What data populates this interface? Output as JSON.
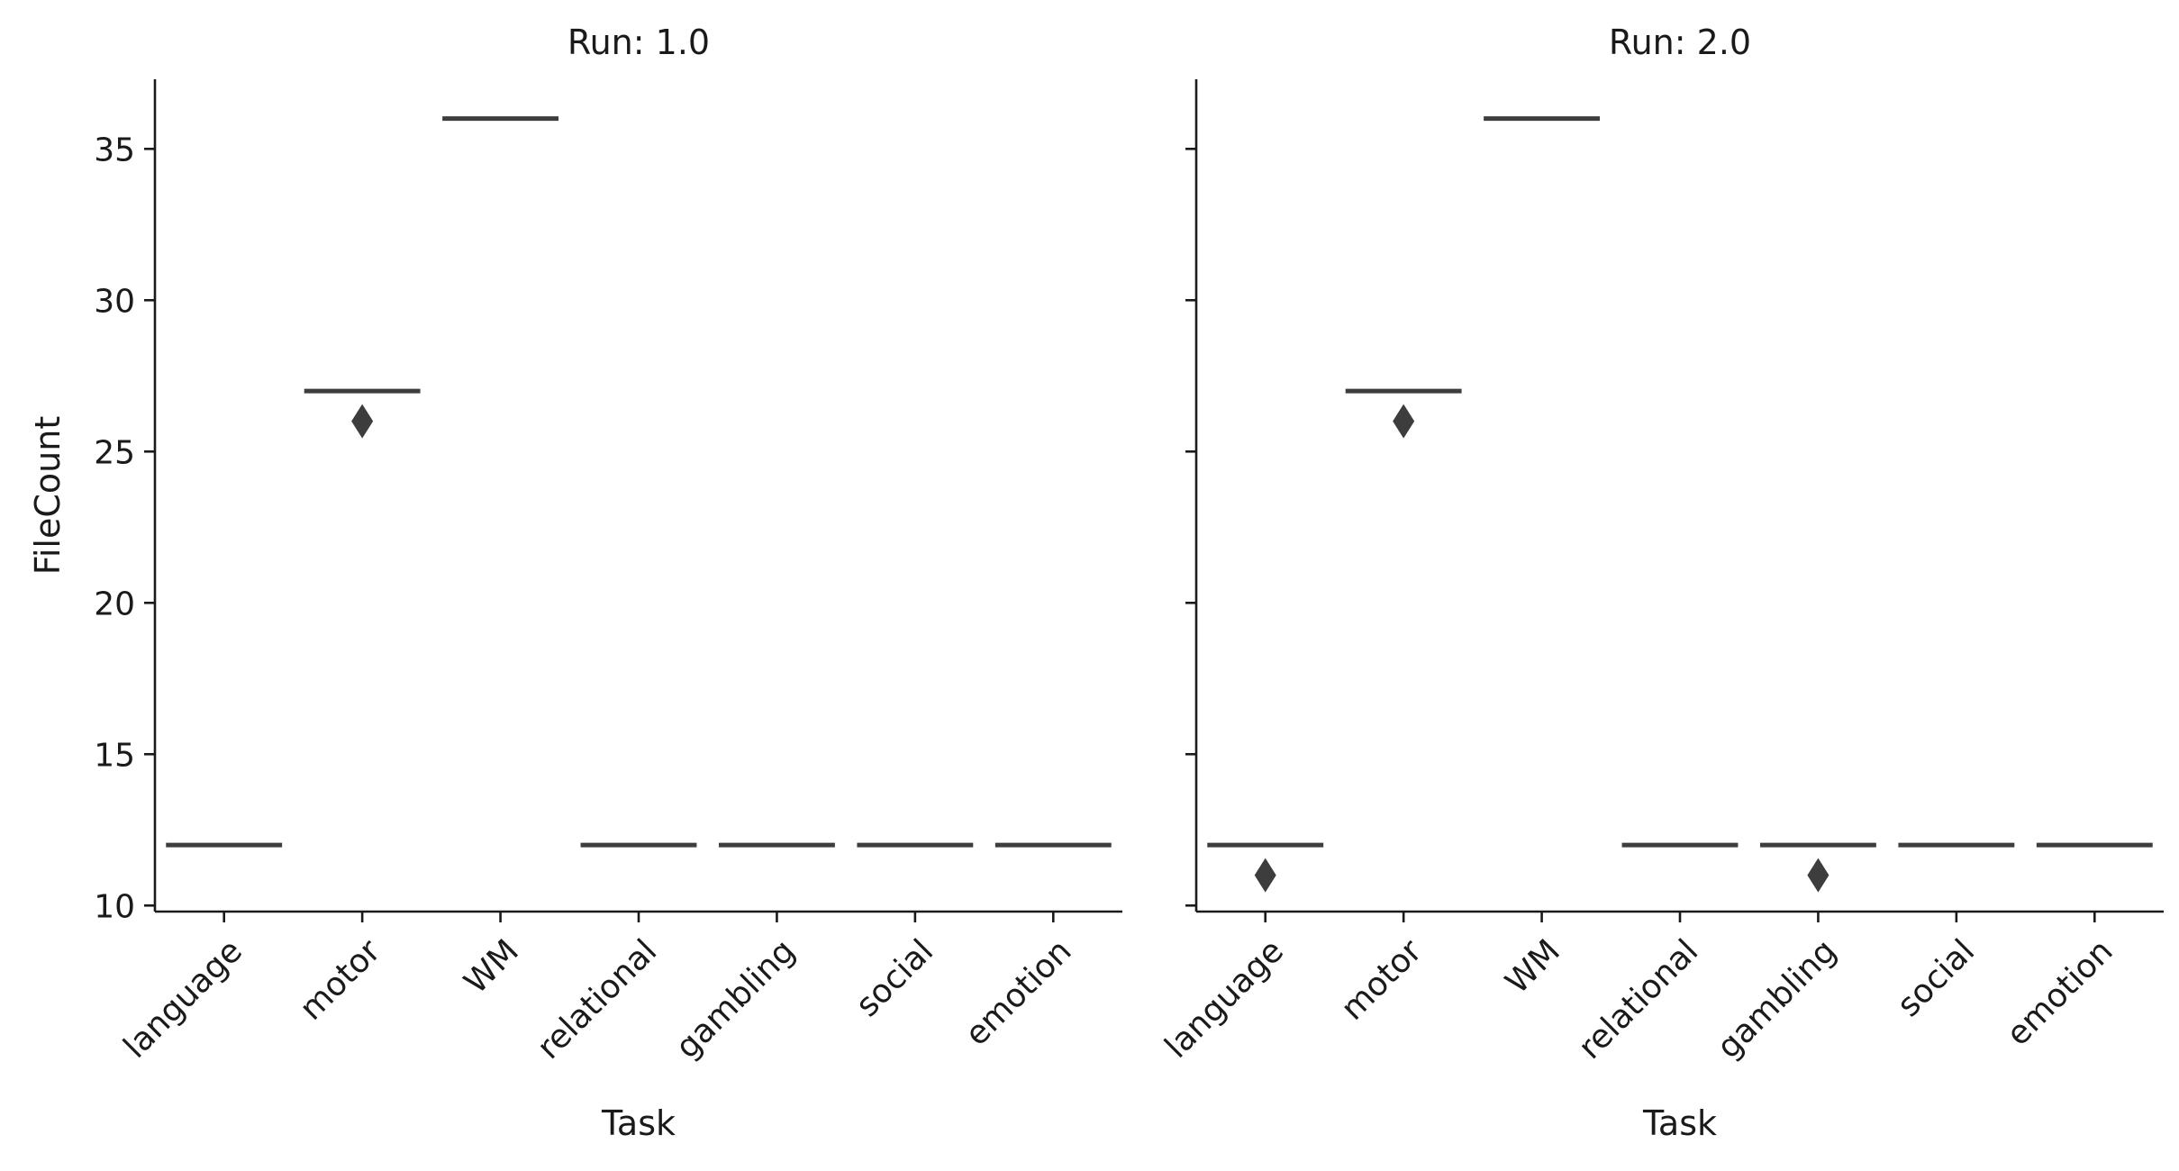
{
  "chart_data": {
    "type": "box",
    "colors": {
      "box": "#3d3d3d",
      "outlier": "#3d3d3d",
      "axis": "#1a1a1a"
    },
    "categories": [
      "language",
      "motor",
      "WM",
      "relational",
      "gambling",
      "social",
      "emotion"
    ],
    "xlabel": "Task",
    "ylabel": "FileCount",
    "ylim": [
      9.8,
      37.3
    ],
    "yticks": [
      10,
      15,
      20,
      25,
      30,
      35
    ],
    "grid": false,
    "sharey": true,
    "panels": [
      {
        "title": "Run: 1.0",
        "medians": [
          12,
          27,
          36,
          12,
          12,
          12,
          12
        ],
        "outliers": [
          {
            "task": "motor",
            "value": 26
          }
        ]
      },
      {
        "title": "Run: 2.0",
        "medians": [
          12,
          27,
          36,
          12,
          12,
          12,
          12
        ],
        "outliers": [
          {
            "task": "language",
            "value": 11
          },
          {
            "task": "motor",
            "value": 26
          },
          {
            "task": "gambling",
            "value": 11
          }
        ]
      }
    ]
  }
}
